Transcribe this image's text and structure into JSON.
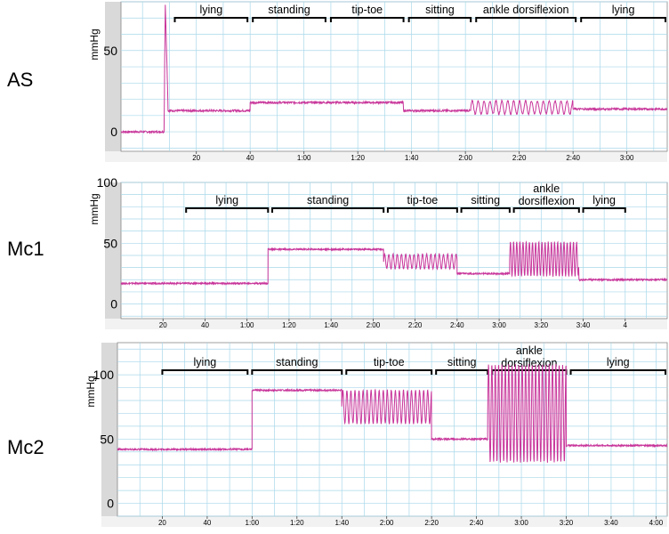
{
  "chart_data": [
    {
      "type": "line",
      "subject": "AS",
      "ylabel": "mmHg",
      "ylim": [
        -12,
        80
      ],
      "yticks": [
        0,
        50
      ],
      "xlim": [
        -8,
        195
      ],
      "xticks": [
        {
          "t": 20,
          "label": "20"
        },
        {
          "t": 40,
          "label": "40"
        },
        {
          "t": 60,
          "label": "1:00"
        },
        {
          "t": 80,
          "label": "1:20"
        },
        {
          "t": 100,
          "label": "1:40"
        },
        {
          "t": 120,
          "label": "2:00"
        },
        {
          "t": 140,
          "label": "2:20"
        },
        {
          "t": 160,
          "label": "2:40"
        },
        {
          "t": 180,
          "label": "3:00"
        }
      ],
      "phases": [
        {
          "label": "lying",
          "start": 12,
          "end": 39
        },
        {
          "label": "standing",
          "start": 41,
          "end": 68
        },
        {
          "label": "tip-toe",
          "start": 70,
          "end": 97
        },
        {
          "label": "sitting",
          "start": 99,
          "end": 122
        },
        {
          "label": "ankle dorsiflexion",
          "start": 124,
          "end": 161
        },
        {
          "label": "lying",
          "start": 163,
          "end": 195
        }
      ],
      "series": [
        {
          "segments": [
            {
              "t0": -8,
              "t1": 8,
              "kind": "flat",
              "v": 0
            },
            {
              "t0": 8,
              "t1": 9.5,
              "kind": "spike",
              "v": 80,
              "end": 15
            },
            {
              "t0": 9.5,
              "t1": 40,
              "kind": "flat",
              "v": 13
            },
            {
              "t0": 40,
              "t1": 97,
              "kind": "flat",
              "v": 18
            },
            {
              "t0": 97,
              "t1": 122,
              "kind": "flat",
              "v": 13
            },
            {
              "t0": 122,
              "t1": 160,
              "kind": "osc",
              "v": 15,
              "amp": 4,
              "period": 2.2
            },
            {
              "t0": 160,
              "t1": 195,
              "kind": "flat",
              "v": 14
            }
          ]
        }
      ]
    },
    {
      "type": "line",
      "subject": "Mc1",
      "ylabel": "mmHg",
      "ylim": [
        -12,
        100
      ],
      "yticks": [
        0,
        50,
        100
      ],
      "xlim": [
        0,
        260
      ],
      "xticks": [
        {
          "t": 20,
          "label": "20"
        },
        {
          "t": 40,
          "label": "40"
        },
        {
          "t": 60,
          "label": "1:00"
        },
        {
          "t": 80,
          "label": "1:20"
        },
        {
          "t": 100,
          "label": "1:40"
        },
        {
          "t": 120,
          "label": "2:00"
        },
        {
          "t": 140,
          "label": "2:20"
        },
        {
          "t": 160,
          "label": "2:40"
        },
        {
          "t": 180,
          "label": "3:00"
        },
        {
          "t": 200,
          "label": "3:20"
        },
        {
          "t": 220,
          "label": "3:40"
        },
        {
          "t": 240,
          "label": "4"
        }
      ],
      "phases": [
        {
          "label": "lying",
          "start": 31,
          "end": 70
        },
        {
          "label": "standing",
          "start": 72,
          "end": 125
        },
        {
          "label": "tip-toe",
          "start": 127,
          "end": 160
        },
        {
          "label": "sitting",
          "start": 162,
          "end": 185
        },
        {
          "label": "ankle dorsiflexion",
          "start": 187,
          "end": 218
        },
        {
          "label": "lying",
          "start": 220,
          "end": 240
        }
      ],
      "series": [
        {
          "segments": [
            {
              "t0": 0,
              "t1": 70,
              "kind": "flat",
              "v": 17
            },
            {
              "t0": 70,
              "t1": 125,
              "kind": "flat",
              "v": 45
            },
            {
              "t0": 125,
              "t1": 160,
              "kind": "osc",
              "v": 35,
              "amp": 6,
              "period": 2
            },
            {
              "t0": 160,
              "t1": 185,
              "kind": "flat",
              "v": 25
            },
            {
              "t0": 185,
              "t1": 218,
              "kind": "osc",
              "v": 37,
              "amp": 14,
              "period": 1.5
            },
            {
              "t0": 218,
              "t1": 260,
              "kind": "flat",
              "v": 20
            }
          ]
        }
      ]
    },
    {
      "type": "line",
      "subject": "Mc2",
      "ylabel": "mmHg",
      "ylim": [
        -10,
        125
      ],
      "yticks": [
        0,
        50,
        100
      ],
      "xlim": [
        0,
        245
      ],
      "xticks": [
        {
          "t": 20,
          "label": "20"
        },
        {
          "t": 40,
          "label": "40"
        },
        {
          "t": 60,
          "label": "1:00"
        },
        {
          "t": 80,
          "label": "1:20"
        },
        {
          "t": 100,
          "label": "1:40"
        },
        {
          "t": 120,
          "label": "2:00"
        },
        {
          "t": 140,
          "label": "2:20"
        },
        {
          "t": 160,
          "label": "2:40"
        },
        {
          "t": 180,
          "label": "3:00"
        },
        {
          "t": 200,
          "label": "3:20"
        },
        {
          "t": 220,
          "label": "3:40"
        },
        {
          "t": 240,
          "label": "4:00"
        }
      ],
      "phases": [
        {
          "label": "lying",
          "start": 20,
          "end": 58
        },
        {
          "label": "standing",
          "start": 60,
          "end": 100
        },
        {
          "label": "tip-toe",
          "start": 102,
          "end": 140
        },
        {
          "label": "sitting",
          "start": 142,
          "end": 165
        },
        {
          "label": "ankle dorsiflexion",
          "start": 167,
          "end": 200
        },
        {
          "label": "lying",
          "start": 202,
          "end": 245
        }
      ],
      "series": [
        {
          "segments": [
            {
              "t0": 0,
              "t1": 60,
              "kind": "flat",
              "v": 42
            },
            {
              "t0": 60,
              "t1": 100,
              "kind": "flat",
              "v": 88
            },
            {
              "t0": 100,
              "t1": 140,
              "kind": "osc",
              "v": 75,
              "amp": 13,
              "period": 1.8
            },
            {
              "t0": 140,
              "t1": 165,
              "kind": "flat",
              "v": 50
            },
            {
              "t0": 165,
              "t1": 200,
              "kind": "osc",
              "v": 70,
              "amp": 38,
              "period": 1.5
            },
            {
              "t0": 200,
              "t1": 245,
              "kind": "flat",
              "v": 45
            }
          ]
        }
      ]
    }
  ],
  "colors": {
    "trace": "#c8359a",
    "grid": "#a9d8ea",
    "axis_strip": "#d9d9d9",
    "bracket": "#000000"
  }
}
